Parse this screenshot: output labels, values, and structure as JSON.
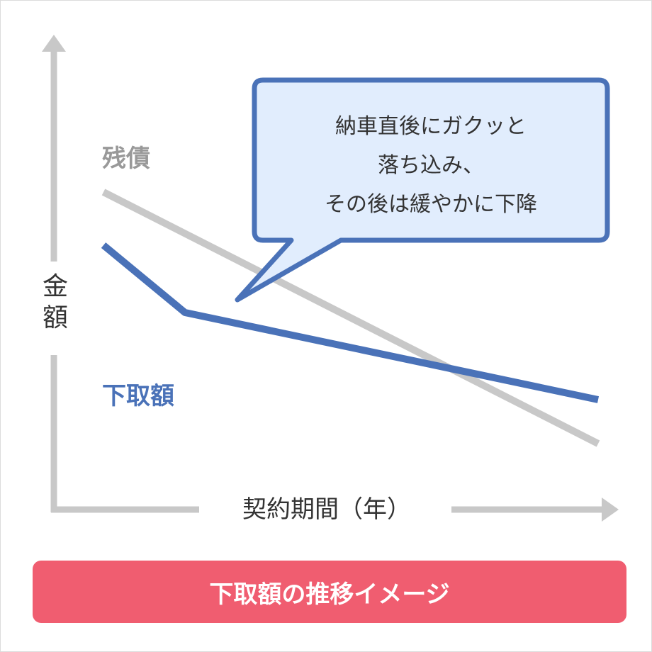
{
  "colors": {
    "shitadori": "#4a72b8",
    "zansai": "#c8c8c8",
    "bubble_fill": "#e1edfd",
    "banner": "#f05d70",
    "axis": "#c8c8c8"
  },
  "axes": {
    "y_label_line1": "金",
    "y_label_line2": "額",
    "x_label": "契約期間（年）"
  },
  "series": {
    "zansai": "残債",
    "shitadori": "下取額"
  },
  "callout": {
    "line1": "納車直後にガクッと",
    "line2": "落ち込み、",
    "line3": "その後は緩やかに下降"
  },
  "banner": {
    "title": "下取額の推移イメージ"
  }
}
